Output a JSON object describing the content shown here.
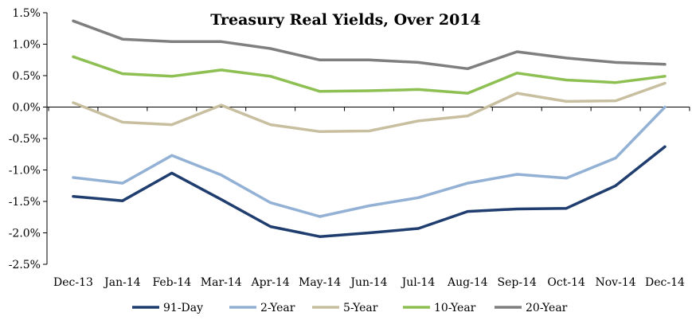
{
  "chart_data": {
    "type": "line",
    "title": "Treasury Real Yields, Over 2014",
    "xlabel": "",
    "ylabel": "",
    "ylim": [
      -2.5,
      1.5
    ],
    "yticks": [
      "1.5%",
      "1.0%",
      "0.5%",
      "0.0%",
      "-0.5%",
      "-1.0%",
      "-1.5%",
      "-2.0%",
      "-2.5%"
    ],
    "ytick_values": [
      1.5,
      1.0,
      0.5,
      0.0,
      -0.5,
      -1.0,
      -1.5,
      -2.0,
      -2.5
    ],
    "categories": [
      "Dec-13",
      "Jan-14",
      "Feb-14",
      "Mar-14",
      "Apr-14",
      "May-14",
      "Jun-14",
      "Jul-14",
      "Aug-14",
      "Sep-14",
      "Oct-14",
      "Nov-14",
      "Dec-14"
    ],
    "legend_position": "bottom",
    "grid": false,
    "series": [
      {
        "name": "91-Day",
        "color": "#1f3d6e",
        "values": [
          -1.42,
          -1.49,
          -1.05,
          -1.47,
          -1.9,
          -2.06,
          -2.0,
          -1.93,
          -1.66,
          -1.62,
          -1.61,
          -1.25,
          -0.63
        ]
      },
      {
        "name": "2-Year",
        "color": "#93b1d4",
        "values": [
          -1.12,
          -1.21,
          -0.77,
          -1.08,
          -1.52,
          -1.74,
          -1.57,
          -1.44,
          -1.21,
          -1.07,
          -1.13,
          -0.81,
          0.0
        ]
      },
      {
        "name": "5-Year",
        "color": "#c8bfa0",
        "values": [
          0.07,
          -0.24,
          -0.28,
          0.03,
          -0.28,
          -0.39,
          -0.38,
          -0.22,
          -0.14,
          0.22,
          0.09,
          0.1,
          0.38
        ]
      },
      {
        "name": "10-Year",
        "color": "#8dbf52",
        "values": [
          0.8,
          0.53,
          0.49,
          0.59,
          0.49,
          0.25,
          0.26,
          0.28,
          0.22,
          0.54,
          0.43,
          0.39,
          0.49
        ]
      },
      {
        "name": "20-Year",
        "color": "#7f7f7f",
        "values": [
          1.37,
          1.08,
          1.04,
          1.04,
          0.93,
          0.75,
          0.75,
          0.71,
          0.61,
          0.88,
          0.78,
          0.71,
          0.68
        ]
      }
    ]
  }
}
